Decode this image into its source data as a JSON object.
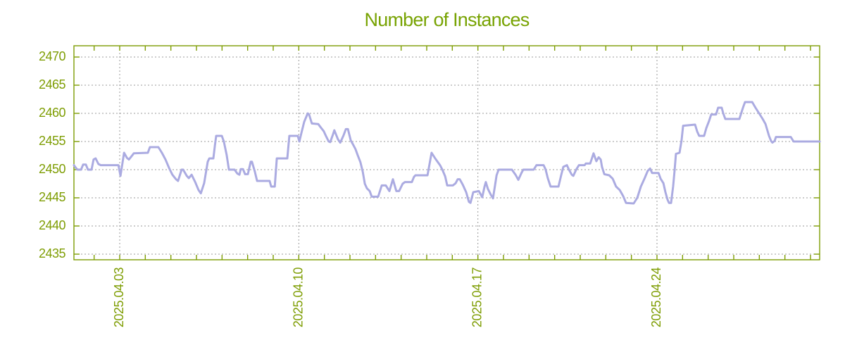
{
  "chart_data": {
    "type": "line",
    "title": "Number of Instances",
    "series_name": "instances",
    "grid": true,
    "legend": "none",
    "x_axis": {
      "unit": "day-of-April-2025",
      "tick_labels": [
        "2025.04.03",
        "2025.04.10",
        "2025.04.17",
        "2025.04.24"
      ],
      "tick_days": [
        3,
        10,
        17,
        24
      ],
      "minor_tick_step_days": 1,
      "minor_tick_day_min": 2,
      "minor_tick_day_max": 30,
      "range_days": [
        1.21,
        30.36
      ]
    },
    "y_axis": {
      "ticks": [
        2470,
        2465,
        2460,
        2455,
        2450,
        2445,
        2440,
        2435
      ],
      "tick_labels": [
        "2470",
        "2465",
        "2460",
        "2455",
        "2450",
        "2445",
        "2440",
        "2435"
      ],
      "range": [
        2434,
        2472
      ]
    },
    "colors": {
      "line": "#ABABE1",
      "axis": "#7E9D03",
      "title": "#78A303",
      "grid": "#999999",
      "background": "#FFFFFF"
    },
    "points": [
      [
        1.21,
        2450.8
      ],
      [
        1.29,
        2450.3
      ],
      [
        1.35,
        2450
      ],
      [
        1.49,
        2450
      ],
      [
        1.57,
        2450.9
      ],
      [
        1.68,
        2450.9
      ],
      [
        1.76,
        2450
      ],
      [
        1.9,
        2450
      ],
      [
        1.98,
        2451.8
      ],
      [
        2.06,
        2452
      ],
      [
        2.17,
        2451
      ],
      [
        2.26,
        2450.8
      ],
      [
        2.95,
        2450.8
      ],
      [
        3.03,
        2448.9
      ],
      [
        3.17,
        2453
      ],
      [
        3.28,
        2452.1
      ],
      [
        3.36,
        2451.8
      ],
      [
        3.5,
        2452.6
      ],
      [
        3.55,
        2452.9
      ],
      [
        4.1,
        2453
      ],
      [
        4.18,
        2454
      ],
      [
        4.51,
        2454
      ],
      [
        4.65,
        2453
      ],
      [
        4.79,
        2451.8
      ],
      [
        4.93,
        2450.3
      ],
      [
        5.06,
        2449.1
      ],
      [
        5.2,
        2448.3
      ],
      [
        5.28,
        2448
      ],
      [
        5.42,
        2450
      ],
      [
        5.48,
        2450
      ],
      [
        5.62,
        2448.9
      ],
      [
        5.7,
        2448.5
      ],
      [
        5.81,
        2449.1
      ],
      [
        5.95,
        2447.8
      ],
      [
        6.08,
        2446.4
      ],
      [
        6.17,
        2445.8
      ],
      [
        6.3,
        2447.6
      ],
      [
        6.44,
        2451.4
      ],
      [
        6.5,
        2452
      ],
      [
        6.66,
        2452
      ],
      [
        6.72,
        2454.3
      ],
      [
        6.77,
        2456
      ],
      [
        6.99,
        2456
      ],
      [
        7.07,
        2455
      ],
      [
        7.18,
        2452.6
      ],
      [
        7.27,
        2450
      ],
      [
        7.49,
        2450
      ],
      [
        7.6,
        2449.3
      ],
      [
        7.68,
        2449.1
      ],
      [
        7.73,
        2450.1
      ],
      [
        7.82,
        2450.1
      ],
      [
        7.9,
        2449.2
      ],
      [
        8.01,
        2449.2
      ],
      [
        8.12,
        2451.4
      ],
      [
        8.17,
        2451.4
      ],
      [
        8.28,
        2449.7
      ],
      [
        8.37,
        2448
      ],
      [
        8.86,
        2448
      ],
      [
        8.92,
        2447
      ],
      [
        9.06,
        2447
      ],
      [
        9.14,
        2452
      ],
      [
        9.55,
        2452
      ],
      [
        9.63,
        2456
      ],
      [
        9.96,
        2456
      ],
      [
        10.02,
        2455
      ],
      [
        10.1,
        2456.5
      ],
      [
        10.21,
        2458.5
      ],
      [
        10.35,
        2460
      ],
      [
        10.4,
        2459.8
      ],
      [
        10.51,
        2458.2
      ],
      [
        10.76,
        2458.1
      ],
      [
        10.84,
        2457.6
      ],
      [
        10.98,
        2456.8
      ],
      [
        11.06,
        2456
      ],
      [
        11.17,
        2455
      ],
      [
        11.23,
        2454.9
      ],
      [
        11.34,
        2456.3
      ],
      [
        11.39,
        2457
      ],
      [
        11.53,
        2455.4
      ],
      [
        11.62,
        2454.8
      ],
      [
        11.75,
        2456.1
      ],
      [
        11.84,
        2457.2
      ],
      [
        11.92,
        2457.2
      ],
      [
        12.03,
        2455.2
      ],
      [
        12.14,
        2454.3
      ],
      [
        12.22,
        2453.6
      ],
      [
        12.3,
        2452.6
      ],
      [
        12.41,
        2451.3
      ],
      [
        12.5,
        2449.6
      ],
      [
        12.58,
        2447.5
      ],
      [
        12.66,
        2446.7
      ],
      [
        12.77,
        2446.2
      ],
      [
        12.85,
        2445.2
      ],
      [
        13.1,
        2445.2
      ],
      [
        13.24,
        2447.2
      ],
      [
        13.4,
        2447.2
      ],
      [
        13.54,
        2446.2
      ],
      [
        13.68,
        2448.3
      ],
      [
        13.81,
        2446.2
      ],
      [
        13.92,
        2446.2
      ],
      [
        14.06,
        2447.5
      ],
      [
        14.15,
        2447.8
      ],
      [
        14.42,
        2447.8
      ],
      [
        14.5,
        2448.7
      ],
      [
        14.56,
        2449
      ],
      [
        15.03,
        2449
      ],
      [
        15.19,
        2453
      ],
      [
        15.33,
        2452
      ],
      [
        15.44,
        2451.3
      ],
      [
        15.52,
        2450.8
      ],
      [
        15.61,
        2450
      ],
      [
        15.72,
        2448.8
      ],
      [
        15.8,
        2447.2
      ],
      [
        16.02,
        2447.2
      ],
      [
        16.13,
        2447.6
      ],
      [
        16.21,
        2448.3
      ],
      [
        16.29,
        2448.3
      ],
      [
        16.4,
        2447.4
      ],
      [
        16.54,
        2446
      ],
      [
        16.65,
        2444.3
      ],
      [
        16.71,
        2444.1
      ],
      [
        16.82,
        2446
      ],
      [
        17.04,
        2446.2
      ],
      [
        17.17,
        2445.1
      ],
      [
        17.26,
        2447
      ],
      [
        17.31,
        2447.8
      ],
      [
        17.39,
        2446.6
      ],
      [
        17.5,
        2445.6
      ],
      [
        17.59,
        2444.9
      ],
      [
        17.67,
        2447.2
      ],
      [
        17.73,
        2449
      ],
      [
        17.81,
        2450
      ],
      [
        18.33,
        2450
      ],
      [
        18.47,
        2449.1
      ],
      [
        18.58,
        2448.2
      ],
      [
        18.69,
        2449.3
      ],
      [
        18.77,
        2450
      ],
      [
        19.18,
        2450
      ],
      [
        19.29,
        2450.8
      ],
      [
        19.57,
        2450.8
      ],
      [
        19.65,
        2450
      ],
      [
        19.73,
        2448.5
      ],
      [
        19.84,
        2447
      ],
      [
        20.15,
        2447
      ],
      [
        20.26,
        2449.1
      ],
      [
        20.34,
        2450.5
      ],
      [
        20.48,
        2450.8
      ],
      [
        20.56,
        2450
      ],
      [
        20.67,
        2449.1
      ],
      [
        20.73,
        2448.9
      ],
      [
        20.84,
        2450
      ],
      [
        20.95,
        2450.8
      ],
      [
        21.17,
        2450.8
      ],
      [
        21.22,
        2451.1
      ],
      [
        21.39,
        2451.1
      ],
      [
        21.47,
        2452.2
      ],
      [
        21.52,
        2452.9
      ],
      [
        21.63,
        2451.5
      ],
      [
        21.72,
        2452.2
      ],
      [
        21.8,
        2451.8
      ],
      [
        21.85,
        2450.5
      ],
      [
        21.94,
        2449.2
      ],
      [
        22.13,
        2449
      ],
      [
        22.27,
        2448.4
      ],
      [
        22.4,
        2447
      ],
      [
        22.54,
        2446.4
      ],
      [
        22.68,
        2445.3
      ],
      [
        22.79,
        2444.1
      ],
      [
        23.09,
        2444
      ],
      [
        23.23,
        2445
      ],
      [
        23.37,
        2447
      ],
      [
        23.51,
        2448.4
      ],
      [
        23.64,
        2449.8
      ],
      [
        23.73,
        2450.2
      ],
      [
        23.81,
        2449.4
      ],
      [
        24.06,
        2449.4
      ],
      [
        24.14,
        2448.4
      ],
      [
        24.25,
        2447.6
      ],
      [
        24.33,
        2446
      ],
      [
        24.41,
        2444.7
      ],
      [
        24.47,
        2444.1
      ],
      [
        24.55,
        2444.1
      ],
      [
        24.63,
        2447
      ],
      [
        24.69,
        2450
      ],
      [
        24.74,
        2452.8
      ],
      [
        24.88,
        2453
      ],
      [
        24.96,
        2455.2
      ],
      [
        25.02,
        2457.8
      ],
      [
        25.49,
        2458
      ],
      [
        25.57,
        2456.8
      ],
      [
        25.65,
        2456
      ],
      [
        25.84,
        2456
      ],
      [
        25.93,
        2457.4
      ],
      [
        26.04,
        2458.7
      ],
      [
        26.12,
        2459.8
      ],
      [
        26.31,
        2459.8
      ],
      [
        26.39,
        2461
      ],
      [
        26.53,
        2461
      ],
      [
        26.59,
        2460
      ],
      [
        26.67,
        2459
      ],
      [
        27.22,
        2459
      ],
      [
        27.36,
        2461
      ],
      [
        27.44,
        2462
      ],
      [
        27.72,
        2462
      ],
      [
        27.85,
        2461
      ],
      [
        27.99,
        2460
      ],
      [
        28.13,
        2459
      ],
      [
        28.24,
        2458.1
      ],
      [
        28.38,
        2456
      ],
      [
        28.46,
        2455.1
      ],
      [
        28.51,
        2454.8
      ],
      [
        28.6,
        2455.1
      ],
      [
        28.65,
        2455.8
      ],
      [
        29.23,
        2455.8
      ],
      [
        29.34,
        2455
      ],
      [
        30.36,
        2455
      ]
    ]
  }
}
